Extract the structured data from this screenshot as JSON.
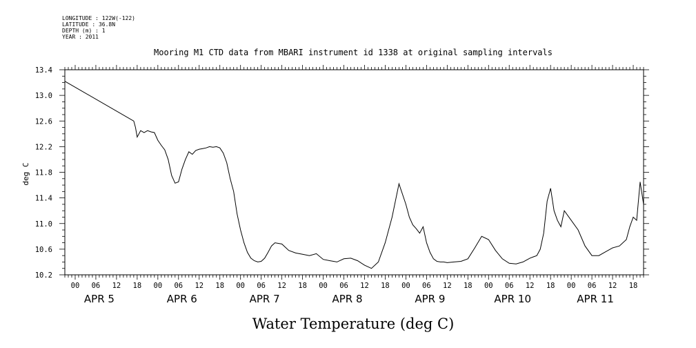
{
  "header": {
    "lines": [
      "LONGITUDE : 122W(-122)",
      "LATITUDE : 36.8N",
      "DEPTH (m) : 1",
      "YEAR : 2011"
    ]
  },
  "chart_data": {
    "type": "line",
    "title": "Mooring M1 CTD data from MBARI instrument id 1338 at original sampling intervals",
    "subtitle": "Water Temperature (deg C)",
    "ylabel": "deg C",
    "xlabel": "",
    "ylim": [
      10.2,
      13.4
    ],
    "yticks": [
      "10.2",
      "10.6",
      "11.0",
      "11.4",
      "11.8",
      "12.2",
      "12.6",
      "13.0",
      "13.4"
    ],
    "xlim_hours": [
      -3,
      165
    ],
    "x_hour_labels": [
      "00",
      "06",
      "12",
      "18",
      "00",
      "06",
      "12",
      "18",
      "00",
      "06",
      "12",
      "18",
      "00",
      "06",
      "12",
      "18",
      "00",
      "06",
      "12",
      "18",
      "00",
      "06",
      "12",
      "18",
      "00",
      "06",
      "12",
      "18"
    ],
    "x_day_labels": [
      "APR  5",
      "APR  6",
      "APR  7",
      "APR  8",
      "APR  9",
      "APR 10",
      "APR 11"
    ],
    "grid": false,
    "series": [
      {
        "x_hours": [
          -3,
          17,
          17.5,
          18,
          19,
          20,
          21,
          22,
          23,
          24,
          25,
          26,
          27,
          28,
          29,
          30,
          31,
          32,
          33,
          34,
          35,
          36,
          37,
          38,
          39,
          40,
          41,
          42,
          43,
          44,
          45,
          46,
          47,
          48,
          48.5,
          49,
          50,
          51,
          52,
          53,
          54,
          55,
          56,
          57,
          58,
          60,
          62,
          64,
          66,
          68,
          70,
          72,
          74,
          76,
          78,
          80,
          82,
          84,
          86,
          88,
          90,
          92,
          94,
          96,
          97,
          98,
          99,
          100,
          101,
          102,
          103,
          104,
          105,
          106,
          107,
          108,
          110,
          112,
          114,
          116,
          118,
          120,
          122,
          124,
          126,
          128,
          130,
          131,
          132,
          133,
          134,
          135,
          136,
          137,
          138,
          139,
          140,
          141,
          142,
          144,
          146,
          148,
          150,
          152,
          154,
          156,
          158,
          160,
          161,
          162,
          163,
          164,
          165
        ],
        "values": [
          13.22,
          12.6,
          12.5,
          12.35,
          12.45,
          12.42,
          12.45,
          12.43,
          12.42,
          12.3,
          12.22,
          12.15,
          12.0,
          11.75,
          11.63,
          11.65,
          11.85,
          12.0,
          12.12,
          12.08,
          12.14,
          12.16,
          12.17,
          12.18,
          12.2,
          12.19,
          12.2,
          12.18,
          12.1,
          11.95,
          11.7,
          11.5,
          11.15,
          10.9,
          10.8,
          10.7,
          10.55,
          10.46,
          10.42,
          10.4,
          10.41,
          10.46,
          10.55,
          10.65,
          10.7,
          10.68,
          10.58,
          10.54,
          10.52,
          10.5,
          10.53,
          10.44,
          10.42,
          10.4,
          10.45,
          10.46,
          10.42,
          10.35,
          10.3,
          10.4,
          10.7,
          11.1,
          11.62,
          11.3,
          11.1,
          10.98,
          10.92,
          10.85,
          10.95,
          10.7,
          10.55,
          10.45,
          10.41,
          10.4,
          10.4,
          10.39,
          10.4,
          10.41,
          10.45,
          10.62,
          10.8,
          10.75,
          10.58,
          10.45,
          10.38,
          10.37,
          10.4,
          10.43,
          10.46,
          10.48,
          10.5,
          10.6,
          10.85,
          11.35,
          11.55,
          11.2,
          11.05,
          10.95,
          11.2,
          11.05,
          10.9,
          10.65,
          10.5,
          10.5,
          10.56,
          10.62,
          10.65,
          10.75,
          10.95,
          11.1,
          11.05,
          11.65,
          11.3
        ]
      }
    ]
  }
}
